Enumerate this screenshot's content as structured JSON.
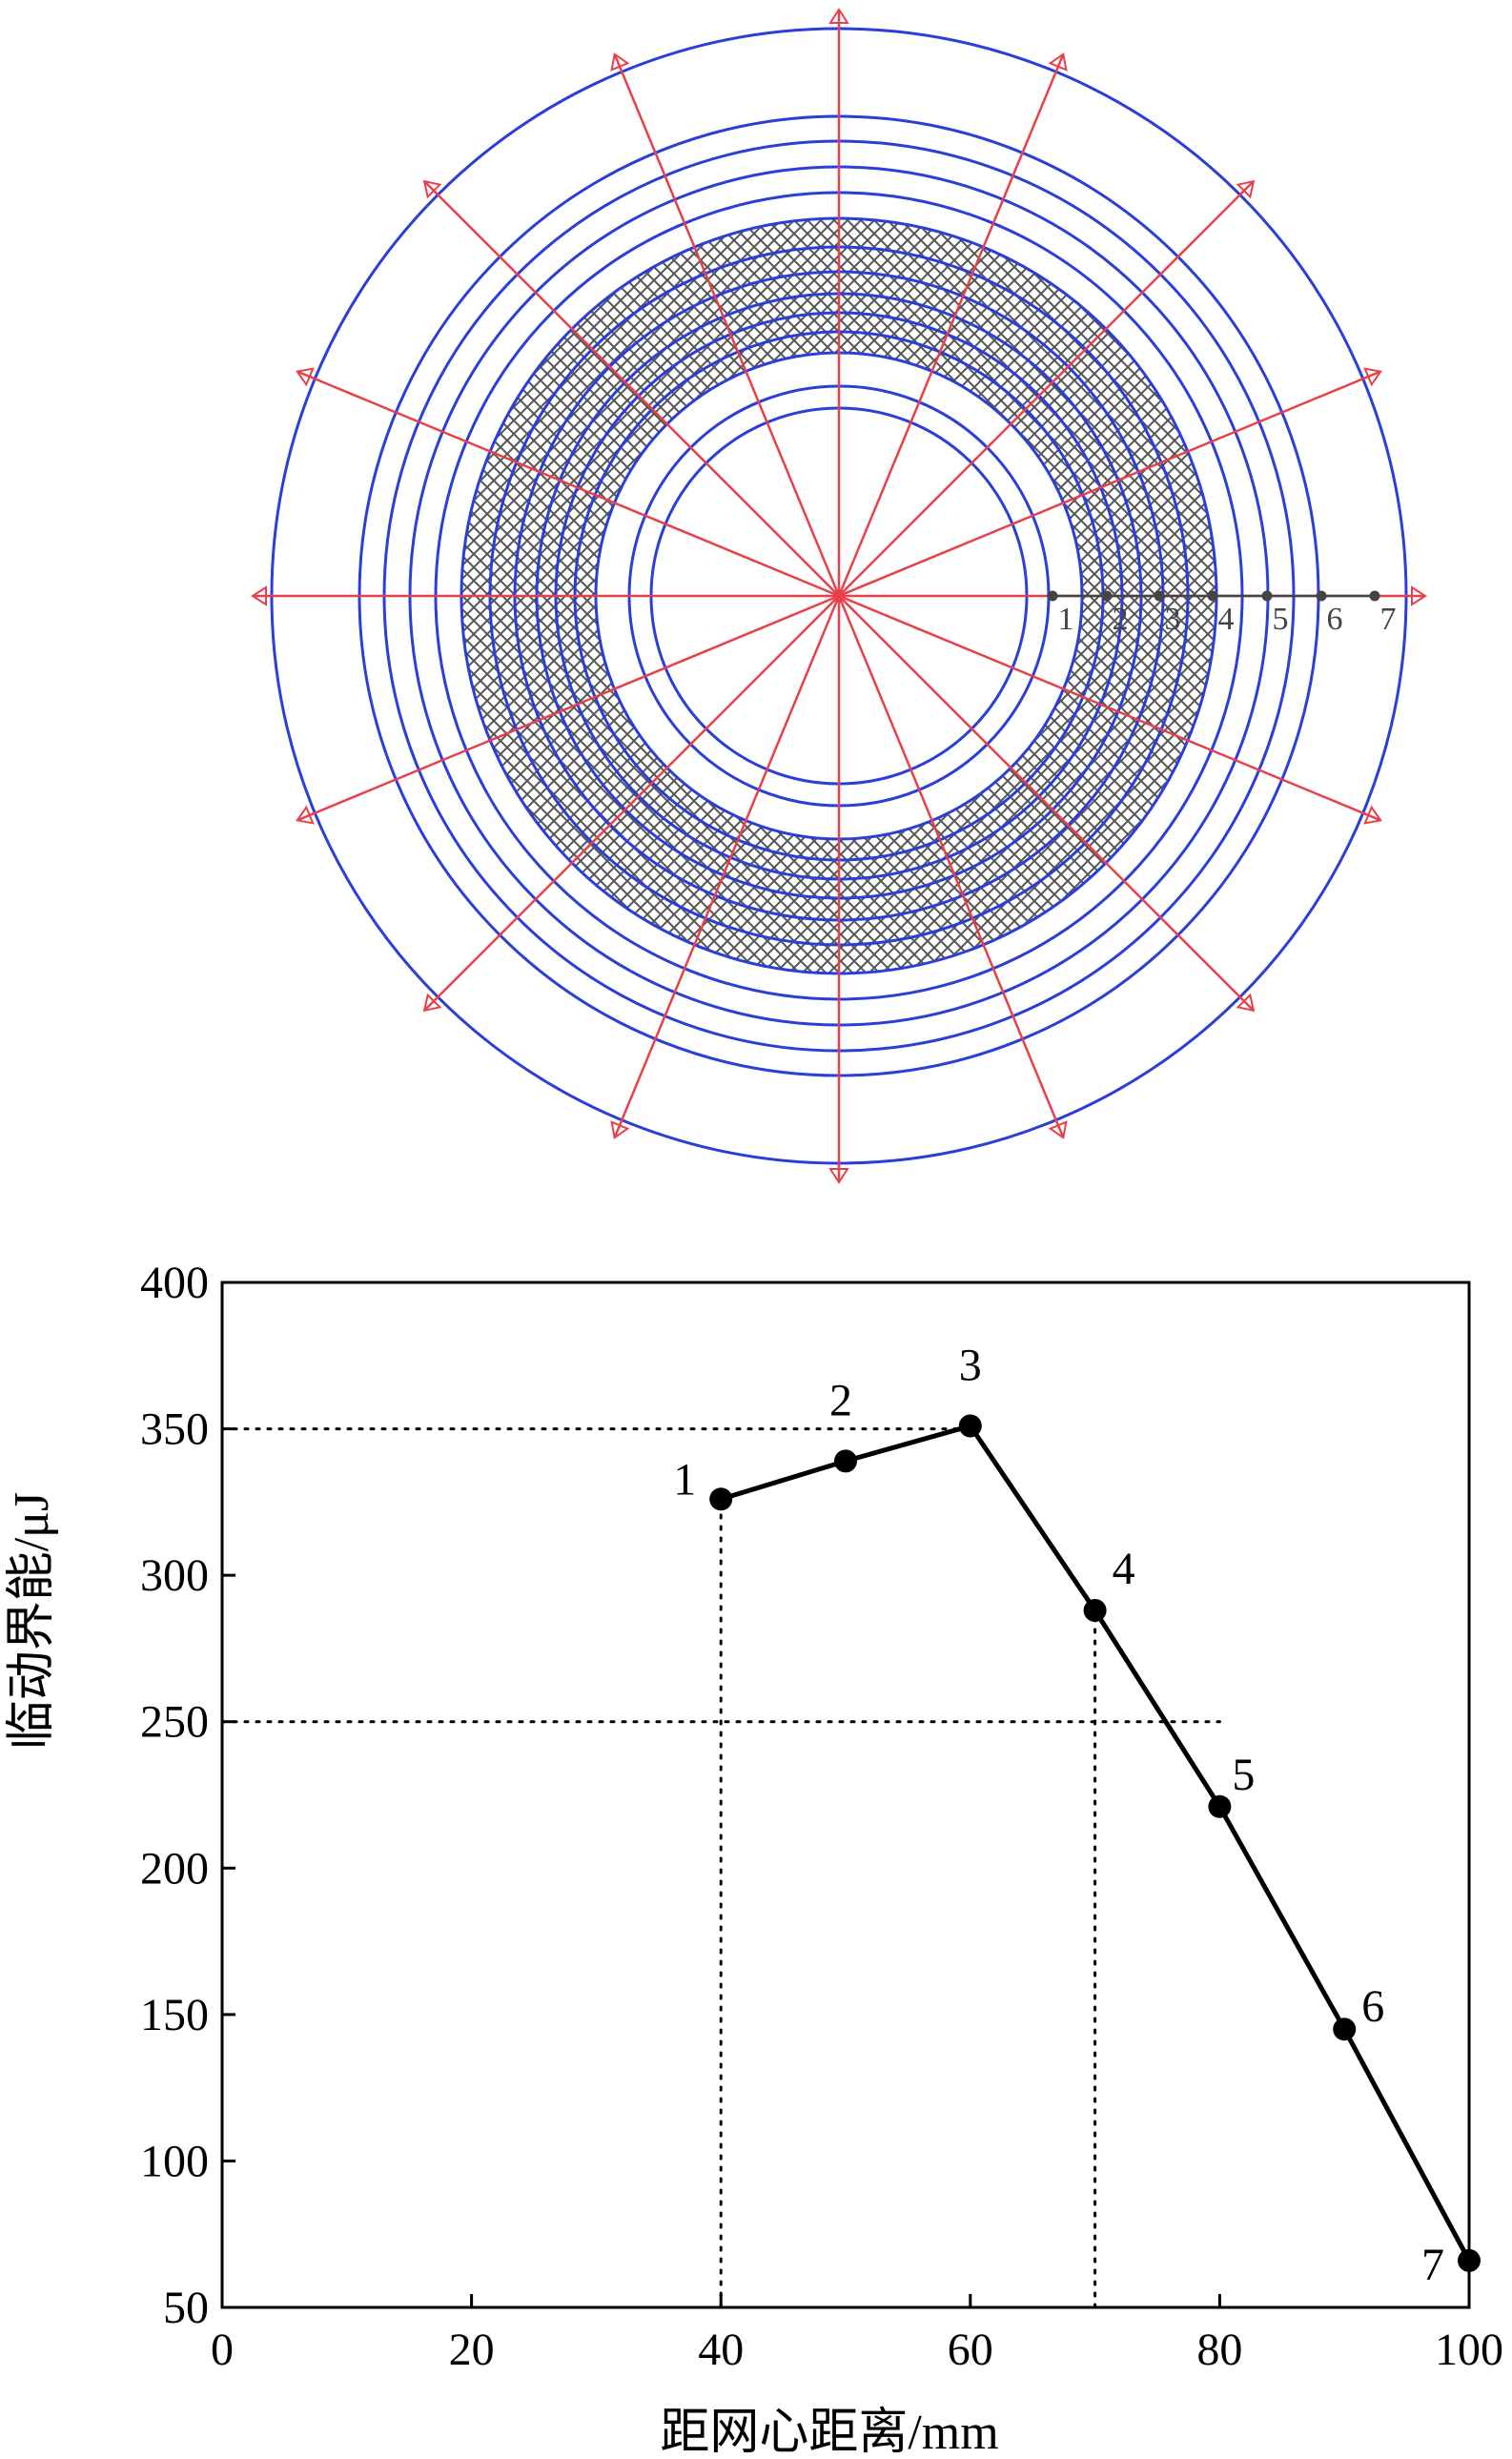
{
  "web_diagram": {
    "ring_labels": [
      "1",
      "2",
      "3",
      "4",
      "5",
      "6",
      "7"
    ],
    "ring_count": 14,
    "spoke_count": 16,
    "colors": {
      "rings": "#2b3fd8",
      "spokes": "#e8404a",
      "hatch": "#555555",
      "markers": "#444444"
    }
  },
  "chart_data": {
    "type": "line",
    "xlabel": "距网心距离/mm",
    "ylabel": "临动界能/μJ",
    "xlim": [
      0,
      100
    ],
    "ylim": [
      50,
      400
    ],
    "xticks": [
      "0",
      "20",
      "40",
      "60",
      "80",
      "100"
    ],
    "yticks": [
      "50",
      "100",
      "150",
      "200",
      "250",
      "300",
      "350",
      "400"
    ],
    "grid": false,
    "series": [
      {
        "x": [
          40,
          50,
          60,
          70,
          80,
          90,
          100
        ],
        "y": [
          326,
          339,
          351,
          288,
          221,
          145,
          66
        ],
        "point_labels": [
          "1",
          "2",
          "3",
          "4",
          "5",
          "6",
          "7"
        ]
      }
    ],
    "reference_lines": [
      {
        "orientation": "horizontal",
        "y": 350,
        "x_range": [
          0,
          60
        ]
      },
      {
        "orientation": "horizontal",
        "y": 250,
        "x_range": [
          0,
          80
        ]
      },
      {
        "orientation": "vertical",
        "x": 40,
        "y_range": [
          50,
          326
        ]
      },
      {
        "orientation": "vertical",
        "x": 70,
        "y_range": [
          50,
          288
        ]
      }
    ]
  }
}
